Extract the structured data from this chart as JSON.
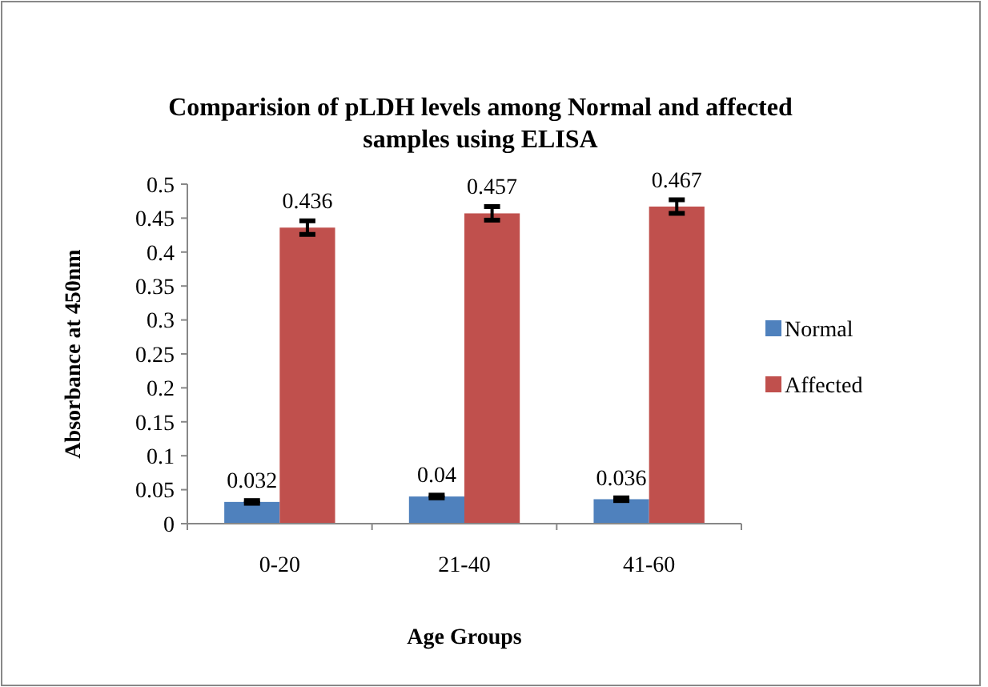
{
  "chart_data": {
    "type": "bar",
    "title": "Comparision of pLDH levels among Normal and affected samples using ELISA",
    "xlabel": "Age Groups",
    "ylabel": "Absorbance at 450nm",
    "categories": [
      "0-20",
      "21-40",
      "41-60"
    ],
    "series": [
      {
        "name": "Normal",
        "color": "#4f81bd",
        "values": [
          0.032,
          0.04,
          0.036
        ],
        "errors": [
          0.002,
          0.002,
          0.002
        ]
      },
      {
        "name": "Affected",
        "color": "#c0504d",
        "values": [
          0.436,
          0.457,
          0.467
        ],
        "errors": [
          0.01,
          0.01,
          0.01
        ]
      }
    ],
    "ylim": [
      0,
      0.5
    ],
    "yticks": [
      0,
      0.05,
      0.1,
      0.15,
      0.2,
      0.25,
      0.3,
      0.35,
      0.4,
      0.45,
      0.5
    ],
    "data_labels": true,
    "legend": "right",
    "grid": false
  }
}
